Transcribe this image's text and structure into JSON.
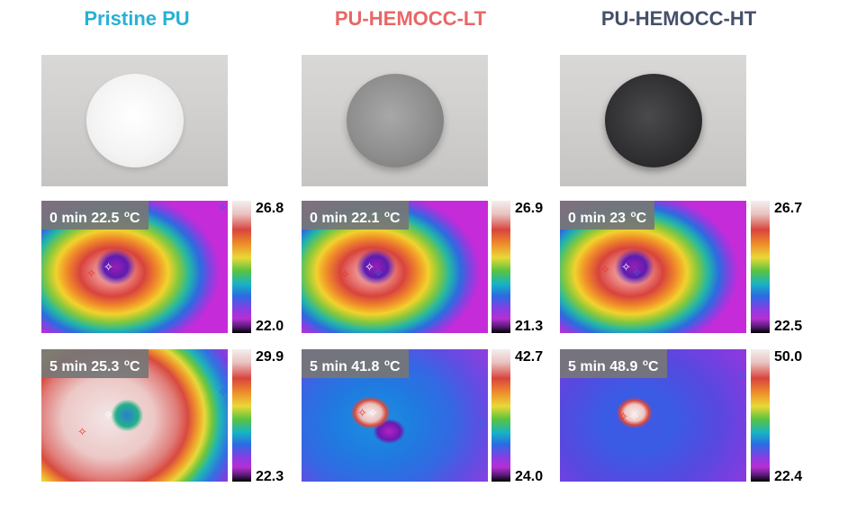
{
  "colors": {
    "pristine_title": "#29b0d6",
    "lt_title": "#e86766",
    "ht_title": "#45506a",
    "badge_bg": "#767676"
  },
  "columns": [
    {
      "title": "Pristine PU",
      "color": "#29b0d6",
      "sample_tone": "white",
      "rows": [
        {
          "time": "0 min",
          "temp": "22.5",
          "unit_o": "o",
          "unit_c": "C",
          "scale_max": "26.8",
          "scale_min": "22.0"
        },
        {
          "time": "5 min",
          "temp": "25.3",
          "unit_o": "o",
          "unit_c": "C",
          "scale_max": "29.9",
          "scale_min": "22.3"
        }
      ]
    },
    {
      "title": "PU-HEMOCC-LT",
      "color": "#e86766",
      "sample_tone": "grey",
      "rows": [
        {
          "time": "0 min",
          "temp": "22.1",
          "unit_o": "o",
          "unit_c": "C",
          "scale_max": "26.9",
          "scale_min": "21.3"
        },
        {
          "time": "5 min",
          "temp": "41.8",
          "unit_o": "o",
          "unit_c": "C",
          "scale_max": "42.7",
          "scale_min": "24.0"
        }
      ]
    },
    {
      "title": "PU-HEMOCC-HT",
      "color": "#45506a",
      "sample_tone": "black",
      "rows": [
        {
          "time": "0 min",
          "temp": "23",
          "unit_o": "o",
          "unit_c": "C",
          "scale_max": "26.7",
          "scale_min": "22.5"
        },
        {
          "time": "5 min",
          "temp": "48.9",
          "unit_o": "o",
          "unit_c": "C",
          "scale_max": "50.0",
          "scale_min": "22.4"
        }
      ]
    }
  ]
}
